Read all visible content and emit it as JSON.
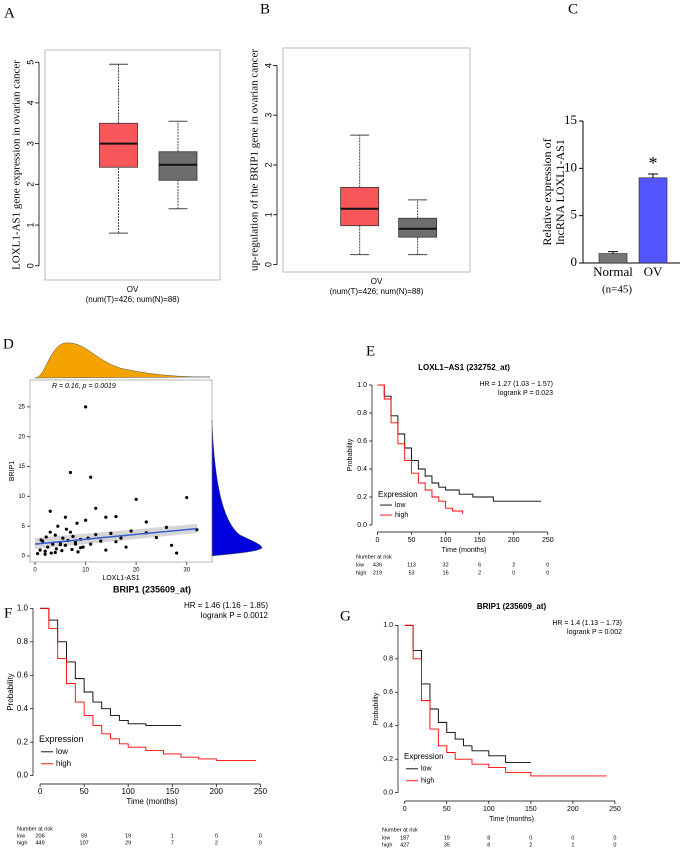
{
  "chart_data": [
    {
      "type": "box",
      "panel": "A",
      "ylabel": "LOXL1-AS1 gene expression in ovarian cancer",
      "xlabel": "OV",
      "note": "(num(T)=426; num(N)=88)",
      "ylim": [
        -0.35,
        5.3
      ],
      "yticks": [
        0,
        1,
        2,
        3,
        4,
        5
      ],
      "boxes": [
        {
          "color": "#f8575a",
          "whislo": 0.8,
          "q1": 2.42,
          "med": 3.0,
          "q3": 3.5,
          "whishi": 4.95
        },
        {
          "color": "#6e6e6e",
          "whislo": 1.4,
          "q1": 2.1,
          "med": 2.48,
          "q3": 2.8,
          "whishi": 3.55
        }
      ]
    },
    {
      "type": "box",
      "panel": "B",
      "ylabel": "up-regulation of the BRIP1 gene in ovarian cancer",
      "xlabel": "OV",
      "note": "(num(T)=426; num(N)=88)",
      "ylim": [
        -0.15,
        4.35
      ],
      "yticks": [
        0,
        1,
        2,
        3,
        4
      ],
      "boxes": [
        {
          "color": "#f8575a",
          "whislo": 0.2,
          "q1": 0.78,
          "med": 1.12,
          "q3": 1.55,
          "whishi": 2.6
        },
        {
          "color": "#6e6e6e",
          "whislo": 0.2,
          "q1": 0.55,
          "med": 0.72,
          "q3": 0.93,
          "whishi": 1.3
        }
      ]
    },
    {
      "type": "bar",
      "panel": "C",
      "ylabel": [
        "Relative expression of",
        "lncRNA LOXL1-AS1"
      ],
      "categories": [
        "Normal",
        "OV"
      ],
      "values": [
        1.0,
        9.0
      ],
      "errors": [
        0.2,
        0.4
      ],
      "colors": [
        "#777777",
        "#5555ff"
      ],
      "ylim": [
        0,
        15
      ],
      "yticks": [
        0,
        5,
        10,
        15
      ],
      "annotation": "*",
      "note": "(n=45)"
    },
    {
      "type": "scatter",
      "panel": "D",
      "annotation": "R = 0.16, p = 0.0019",
      "xlabel": "LOXL1-AS1",
      "ylabel": "BRIP1",
      "xlim": [
        -1,
        35
      ],
      "ylim": [
        -1,
        29.5
      ],
      "xticks": [
        0,
        10,
        20,
        30
      ],
      "yticks": [
        0,
        5,
        10,
        15,
        20,
        25
      ],
      "color": "#000000",
      "x": [
        1,
        1.5,
        2,
        2.2,
        2.5,
        3,
        3.2,
        3.5,
        4,
        4.2,
        4.5,
        5,
        5.3,
        5.5,
        6,
        6.2,
        6.5,
        7,
        7.3,
        7.5,
        8,
        8.3,
        8.5,
        9,
        9.5,
        10,
        10.5,
        11,
        12,
        13,
        14,
        15,
        16,
        17,
        18,
        19,
        20,
        22,
        24,
        26,
        27,
        28,
        30,
        32,
        7,
        10,
        11,
        12,
        14,
        16,
        22,
        6,
        3,
        2,
        4,
        9,
        1.2,
        0.5,
        5,
        8
      ],
      "values": [
        1.0,
        2.5,
        0.8,
        3.2,
        1.5,
        4.0,
        0.5,
        2.0,
        3.5,
        1.2,
        5.0,
        2.2,
        0.9,
        3.0,
        1.8,
        4.5,
        2.6,
        14,
        1.1,
        3.3,
        2.0,
        5.5,
        0.7,
        2.8,
        1.5,
        25,
        3.0,
        13.2,
        8,
        2.5,
        6.5,
        3.8,
        6.6,
        3.0,
        1.5,
        4.2,
        9.5,
        5.7,
        3.1,
        4.8,
        1.8,
        0.5,
        9.8,
        4.4,
        4.0,
        6.0,
        2.0,
        3.6,
        1.0,
        2.4,
        3.9,
        6.5,
        7.5,
        0.3,
        0.6,
        1.4,
        2.7,
        0.4,
        1.9,
        2.3
      ],
      "fit": {
        "x": [
          0,
          32
        ],
        "values": [
          2.0,
          4.6
        ],
        "color": "#3a5fcd"
      }
    },
    {
      "type": "km",
      "panel": "E",
      "title": "LOXL1−AS1 (232752_at)",
      "hr": "HR = 1.27 (1.03 − 1.57)",
      "logrank": "logrank P = 0.023",
      "xlabel": "Time (months)",
      "ylabel": "Probability",
      "legend_title": "Expression",
      "xlim": [
        -8,
        262
      ],
      "ylim": [
        -0.05,
        1.05
      ],
      "xticks": [
        0,
        50,
        100,
        150,
        200,
        250
      ],
      "yticks": [
        {
          "value": 0,
          "label": "0.0"
        },
        {
          "value": 0.2,
          "label": "0.2"
        },
        {
          "value": 0.4,
          "label": "0.4"
        },
        {
          "value": 0.6,
          "label": "0.6"
        },
        {
          "value": 0.8,
          "label": "0.8"
        },
        {
          "value": 1,
          "label": "1.0"
        }
      ],
      "series": [
        {
          "name": "low",
          "color": "#000000",
          "x": [
            0,
            10,
            20,
            30,
            40,
            50,
            60,
            70,
            80,
            90,
            100,
            120,
            140,
            170,
            240
          ],
          "values": [
            1,
            0.92,
            0.78,
            0.65,
            0.55,
            0.46,
            0.4,
            0.35,
            0.3,
            0.27,
            0.25,
            0.22,
            0.2,
            0.17,
            0.17
          ]
        },
        {
          "name": "high",
          "color": "#ff0000",
          "x": [
            0,
            10,
            20,
            30,
            40,
            50,
            60,
            70,
            80,
            90,
            100,
            110,
            125
          ],
          "values": [
            1,
            0.9,
            0.73,
            0.58,
            0.46,
            0.37,
            0.3,
            0.25,
            0.2,
            0.17,
            0.12,
            0.1,
            0.08
          ]
        }
      ],
      "risk_table": {
        "title": "Number at risk",
        "rows": [
          {
            "name": "low",
            "values": [
              436,
              113,
              32,
              6,
              2,
              0
            ]
          },
          {
            "name": "high",
            "values": [
              219,
              53,
              16,
              2,
              0,
              0
            ]
          }
        ]
      }
    },
    {
      "type": "km",
      "panel": "F",
      "title": "BRIP1 (235609_at)",
      "hr": "HR = 1.46 (1.16 − 1.85)",
      "logrank": "logrank P = 0.0012",
      "xlabel": "Time (months)",
      "ylabel": "Probability",
      "legend_title": "Expression",
      "xlim": [
        -8,
        262
      ],
      "ylim": [
        -0.05,
        1.05
      ],
      "xticks": [
        0,
        50,
        100,
        150,
        200,
        250
      ],
      "yticks": [
        {
          "value": 0,
          "label": "0.0"
        },
        {
          "value": 0.2,
          "label": "0.2"
        },
        {
          "value": 0.4,
          "label": "0.4"
        },
        {
          "value": 0.6,
          "label": "0.6"
        },
        {
          "value": 0.8,
          "label": "0.8"
        },
        {
          "value": 1,
          "label": "1.0"
        }
      ],
      "series": [
        {
          "name": "low",
          "color": "#000000",
          "x": [
            0,
            10,
            20,
            30,
            40,
            50,
            60,
            70,
            80,
            90,
            100,
            120,
            140,
            160
          ],
          "values": [
            1,
            0.93,
            0.8,
            0.68,
            0.58,
            0.5,
            0.44,
            0.4,
            0.36,
            0.33,
            0.31,
            0.3,
            0.3,
            0.3
          ]
        },
        {
          "name": "high",
          "color": "#ff0000",
          "x": [
            0,
            10,
            20,
            30,
            40,
            50,
            60,
            70,
            80,
            90,
            100,
            120,
            140,
            160,
            180,
            200,
            245
          ],
          "values": [
            1,
            0.88,
            0.7,
            0.55,
            0.44,
            0.36,
            0.3,
            0.25,
            0.22,
            0.19,
            0.17,
            0.15,
            0.13,
            0.11,
            0.1,
            0.09,
            0.09
          ]
        }
      ],
      "risk_table": {
        "title": "Number at risk",
        "rows": [
          {
            "name": "low",
            "values": [
              206,
              59,
              19,
              1,
              0,
              0
            ]
          },
          {
            "name": "high",
            "values": [
              449,
              107,
              29,
              7,
              2,
              0
            ]
          }
        ]
      }
    },
    {
      "type": "km",
      "panel": "G",
      "title": "BRIP1 (235609_at)",
      "hr": "HR = 1.4 (1.13 − 1.73)",
      "logrank": "logrank P = 0.002",
      "xlabel": "Time (months)",
      "ylabel": "Probability",
      "legend_title": "Expression",
      "xlim": [
        -8,
        262
      ],
      "ylim": [
        -0.05,
        1.05
      ],
      "xticks": [
        0,
        50,
        100,
        150,
        200,
        250
      ],
      "yticks": [
        {
          "value": 0,
          "label": "0.0"
        },
        {
          "value": 0.2,
          "label": "0.2"
        },
        {
          "value": 0.4,
          "label": "0.4"
        },
        {
          "value": 0.6,
          "label": "0.6"
        },
        {
          "value": 0.8,
          "label": "0.8"
        },
        {
          "value": 1,
          "label": "1.0"
        }
      ],
      "series": [
        {
          "name": "low",
          "color": "#000000",
          "x": [
            0,
            10,
            20,
            30,
            40,
            50,
            60,
            70,
            80,
            100,
            120,
            150
          ],
          "values": [
            1,
            0.85,
            0.65,
            0.5,
            0.42,
            0.36,
            0.32,
            0.28,
            0.25,
            0.22,
            0.18,
            0.18
          ]
        },
        {
          "name": "high",
          "color": "#ff0000",
          "x": [
            0,
            10,
            20,
            30,
            40,
            50,
            60,
            80,
            100,
            120,
            150,
            200,
            240
          ],
          "values": [
            1,
            0.8,
            0.55,
            0.38,
            0.28,
            0.24,
            0.2,
            0.17,
            0.15,
            0.12,
            0.1,
            0.1,
            0.1
          ]
        }
      ],
      "risk_table": {
        "title": "Number at risk",
        "rows": [
          {
            "name": "low",
            "values": [
              187,
              19,
              8,
              0,
              0,
              0
            ]
          },
          {
            "name": "high",
            "values": [
              427,
              35,
              8,
              2,
              1,
              0
            ]
          }
        ]
      }
    }
  ]
}
